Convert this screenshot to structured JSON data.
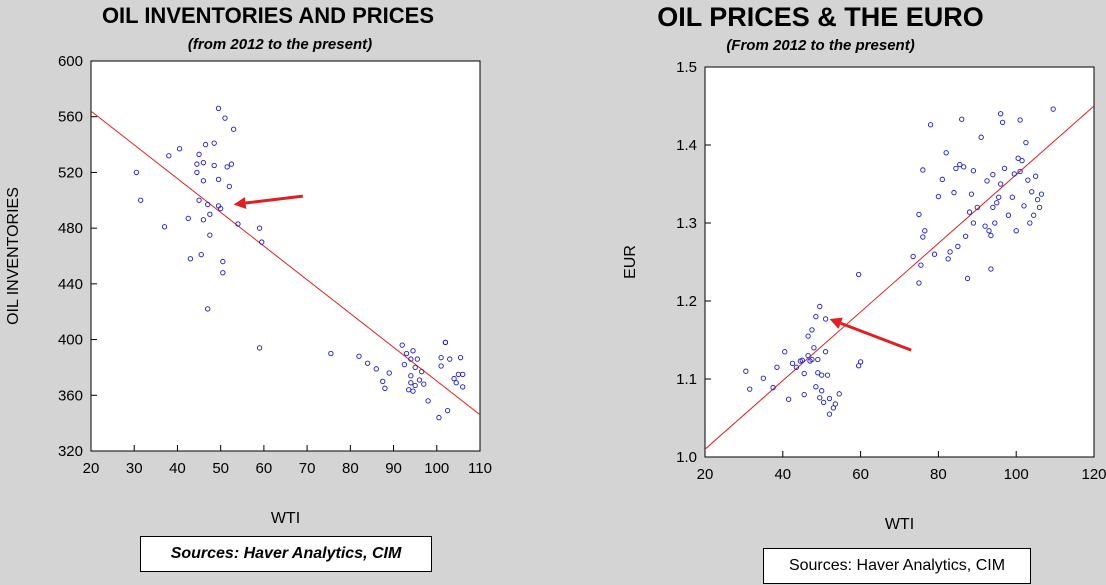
{
  "colors": {
    "background": "#d4d4d4",
    "plot_area": "#ffffff",
    "points": "#1a1acc",
    "regression": "#e02020",
    "arrow": "#e02020"
  },
  "chart_data": [
    {
      "type": "scatter",
      "title": "OIL INVENTORIES AND PRICES",
      "subtitle": "(from 2012 to the present)",
      "xlabel": "WTI",
      "ylabel": "OIL INVENTORIES",
      "xlim": [
        20,
        110
      ],
      "ylim": [
        320,
        600
      ],
      "xticks": [
        "20",
        "30",
        "40",
        "50",
        "60",
        "70",
        "80",
        "90",
        "100",
        "110"
      ],
      "yticks": [
        "320",
        "360",
        "400",
        "440",
        "480",
        "520",
        "560",
        "600"
      ],
      "grid": false,
      "legend": "none",
      "source": "Sources:  Haver Analytics, CIM",
      "regression_line": {
        "x": [
          20,
          110
        ],
        "y": [
          564,
          346
        ]
      },
      "annotation_arrow": {
        "from": [
          69,
          503
        ],
        "to": [
          53,
          497
        ]
      },
      "points": [
        [
          30.5,
          520
        ],
        [
          31.5,
          500
        ],
        [
          37,
          481
        ],
        [
          38,
          532
        ],
        [
          40.5,
          537
        ],
        [
          42.5,
          487
        ],
        [
          43,
          458
        ],
        [
          44.5,
          526
        ],
        [
          44.5,
          520
        ],
        [
          45,
          533
        ],
        [
          45,
          500
        ],
        [
          45.5,
          461
        ],
        [
          46,
          527
        ],
        [
          46,
          486
        ],
        [
          46,
          514
        ],
        [
          46.5,
          540
        ],
        [
          47,
          497
        ],
        [
          47,
          422
        ],
        [
          47.5,
          475
        ],
        [
          47.5,
          490
        ],
        [
          48.5,
          541
        ],
        [
          48.5,
          525
        ],
        [
          49.5,
          566
        ],
        [
          49.5,
          515
        ],
        [
          49.5,
          496
        ],
        [
          50,
          494
        ],
        [
          50.5,
          456
        ],
        [
          50.5,
          448
        ],
        [
          51,
          559
        ],
        [
          51.5,
          524
        ],
        [
          52,
          510
        ],
        [
          52.5,
          526
        ],
        [
          53,
          551
        ],
        [
          54,
          483
        ],
        [
          59,
          480
        ],
        [
          59,
          394
        ],
        [
          59.5,
          470
        ],
        [
          75.5,
          390
        ],
        [
          82,
          388
        ],
        [
          84,
          383
        ],
        [
          86,
          379
        ],
        [
          87.5,
          370
        ],
        [
          88,
          365
        ],
        [
          89,
          376
        ],
        [
          92,
          396
        ],
        [
          92.5,
          382
        ],
        [
          93,
          390
        ],
        [
          93.5,
          364
        ],
        [
          94,
          386
        ],
        [
          94,
          374
        ],
        [
          94,
          369
        ],
        [
          94.5,
          392
        ],
        [
          94.5,
          363
        ],
        [
          95,
          380
        ],
        [
          95,
          367
        ],
        [
          95.5,
          386
        ],
        [
          96,
          371
        ],
        [
          96.5,
          377
        ],
        [
          97,
          368
        ],
        [
          98,
          356
        ],
        [
          100.5,
          344
        ],
        [
          101,
          387
        ],
        [
          101,
          381
        ],
        [
          102,
          398
        ],
        [
          102,
          398
        ],
        [
          102.5,
          349
        ],
        [
          103,
          386
        ],
        [
          104,
          372
        ],
        [
          104.5,
          369
        ],
        [
          105,
          375
        ],
        [
          105.5,
          387
        ],
        [
          106,
          375
        ],
        [
          106,
          366
        ]
      ]
    },
    {
      "type": "scatter",
      "title": "OIL PRICES & THE EURO",
      "subtitle": "(From 2012 to the present)",
      "xlabel": "WTI",
      "ylabel": "EUR",
      "xlim": [
        20,
        120
      ],
      "ylim": [
        1.0,
        1.5
      ],
      "xticks": [
        "20",
        "40",
        "60",
        "80",
        "100",
        "120"
      ],
      "yticks": [
        "1.0",
        "1.1",
        "1.2",
        "1.3",
        "1.4",
        "1.5"
      ],
      "grid": false,
      "legend": "none",
      "source": "Sources:  Haver Analytics, CIM",
      "regression_line": {
        "x": [
          20,
          120
        ],
        "y": [
          1.01,
          1.45
        ]
      },
      "annotation_arrow": {
        "from": [
          73,
          1.137
        ],
        "to": [
          52,
          1.177
        ]
      },
      "points": [
        [
          30.5,
          1.11
        ],
        [
          31.5,
          1.087
        ],
        [
          35,
          1.101
        ],
        [
          37.5,
          1.089
        ],
        [
          38.5,
          1.115
        ],
        [
          40.5,
          1.135
        ],
        [
          41.5,
          1.074
        ],
        [
          42.5,
          1.12
        ],
        [
          43.5,
          1.115
        ],
        [
          44.5,
          1.123
        ],
        [
          45,
          1.124
        ],
        [
          45.5,
          1.107
        ],
        [
          45.5,
          1.08
        ],
        [
          46.5,
          1.13
        ],
        [
          46.5,
          1.155
        ],
        [
          47,
          1.123
        ],
        [
          47.5,
          1.125
        ],
        [
          47.5,
          1.163
        ],
        [
          48,
          1.14
        ],
        [
          48.5,
          1.18
        ],
        [
          48.5,
          1.09
        ],
        [
          49,
          1.125
        ],
        [
          49,
          1.108
        ],
        [
          49.5,
          1.076
        ],
        [
          49.5,
          1.193
        ],
        [
          50,
          1.085
        ],
        [
          50,
          1.105
        ],
        [
          50.5,
          1.07
        ],
        [
          51,
          1.177
        ],
        [
          51,
          1.135
        ],
        [
          51.5,
          1.105
        ],
        [
          52,
          1.075
        ],
        [
          52,
          1.055
        ],
        [
          53,
          1.063
        ],
        [
          53.5,
          1.068
        ],
        [
          54.5,
          1.081
        ],
        [
          59.5,
          1.234
        ],
        [
          59.5,
          1.117
        ],
        [
          60,
          1.122
        ],
        [
          73.5,
          1.257
        ],
        [
          75,
          1.311
        ],
        [
          75,
          1.223
        ],
        [
          75.5,
          1.246
        ],
        [
          76,
          1.282
        ],
        [
          76,
          1.368
        ],
        [
          76.5,
          1.29
        ],
        [
          78,
          1.426
        ],
        [
          79,
          1.26
        ],
        [
          80,
          1.334
        ],
        [
          81,
          1.356
        ],
        [
          82,
          1.39
        ],
        [
          82.5,
          1.254
        ],
        [
          83,
          1.263
        ],
        [
          84,
          1.339
        ],
        [
          84.5,
          1.37
        ],
        [
          85,
          1.27
        ],
        [
          85.5,
          1.375
        ],
        [
          86,
          1.433
        ],
        [
          86.5,
          1.372
        ],
        [
          87,
          1.283
        ],
        [
          87.5,
          1.229
        ],
        [
          88,
          1.314
        ],
        [
          88.5,
          1.337
        ],
        [
          89,
          1.3
        ],
        [
          89,
          1.367
        ],
        [
          90,
          1.32
        ],
        [
          91,
          1.41
        ],
        [
          92,
          1.296
        ],
        [
          92.5,
          1.354
        ],
        [
          93,
          1.29
        ],
        [
          93.5,
          1.284
        ],
        [
          93.5,
          1.241
        ],
        [
          94,
          1.362
        ],
        [
          94,
          1.32
        ],
        [
          94.5,
          1.3
        ],
        [
          95,
          1.326
        ],
        [
          95.5,
          1.333
        ],
        [
          96,
          1.44
        ],
        [
          96,
          1.35
        ],
        [
          96.5,
          1.429
        ],
        [
          97,
          1.37
        ],
        [
          98,
          1.31
        ],
        [
          99,
          1.333
        ],
        [
          99.5,
          1.363
        ],
        [
          100,
          1.29
        ],
        [
          100.5,
          1.383
        ],
        [
          101,
          1.432
        ],
        [
          101,
          1.366
        ],
        [
          101.5,
          1.38
        ],
        [
          102,
          1.322
        ],
        [
          102.5,
          1.403
        ],
        [
          103,
          1.355
        ],
        [
          103.5,
          1.3
        ],
        [
          104,
          1.34
        ],
        [
          104.5,
          1.31
        ],
        [
          105,
          1.36
        ],
        [
          105.5,
          1.33
        ],
        [
          106,
          1.32
        ],
        [
          106.5,
          1.337
        ],
        [
          109.5,
          1.446
        ]
      ]
    }
  ]
}
